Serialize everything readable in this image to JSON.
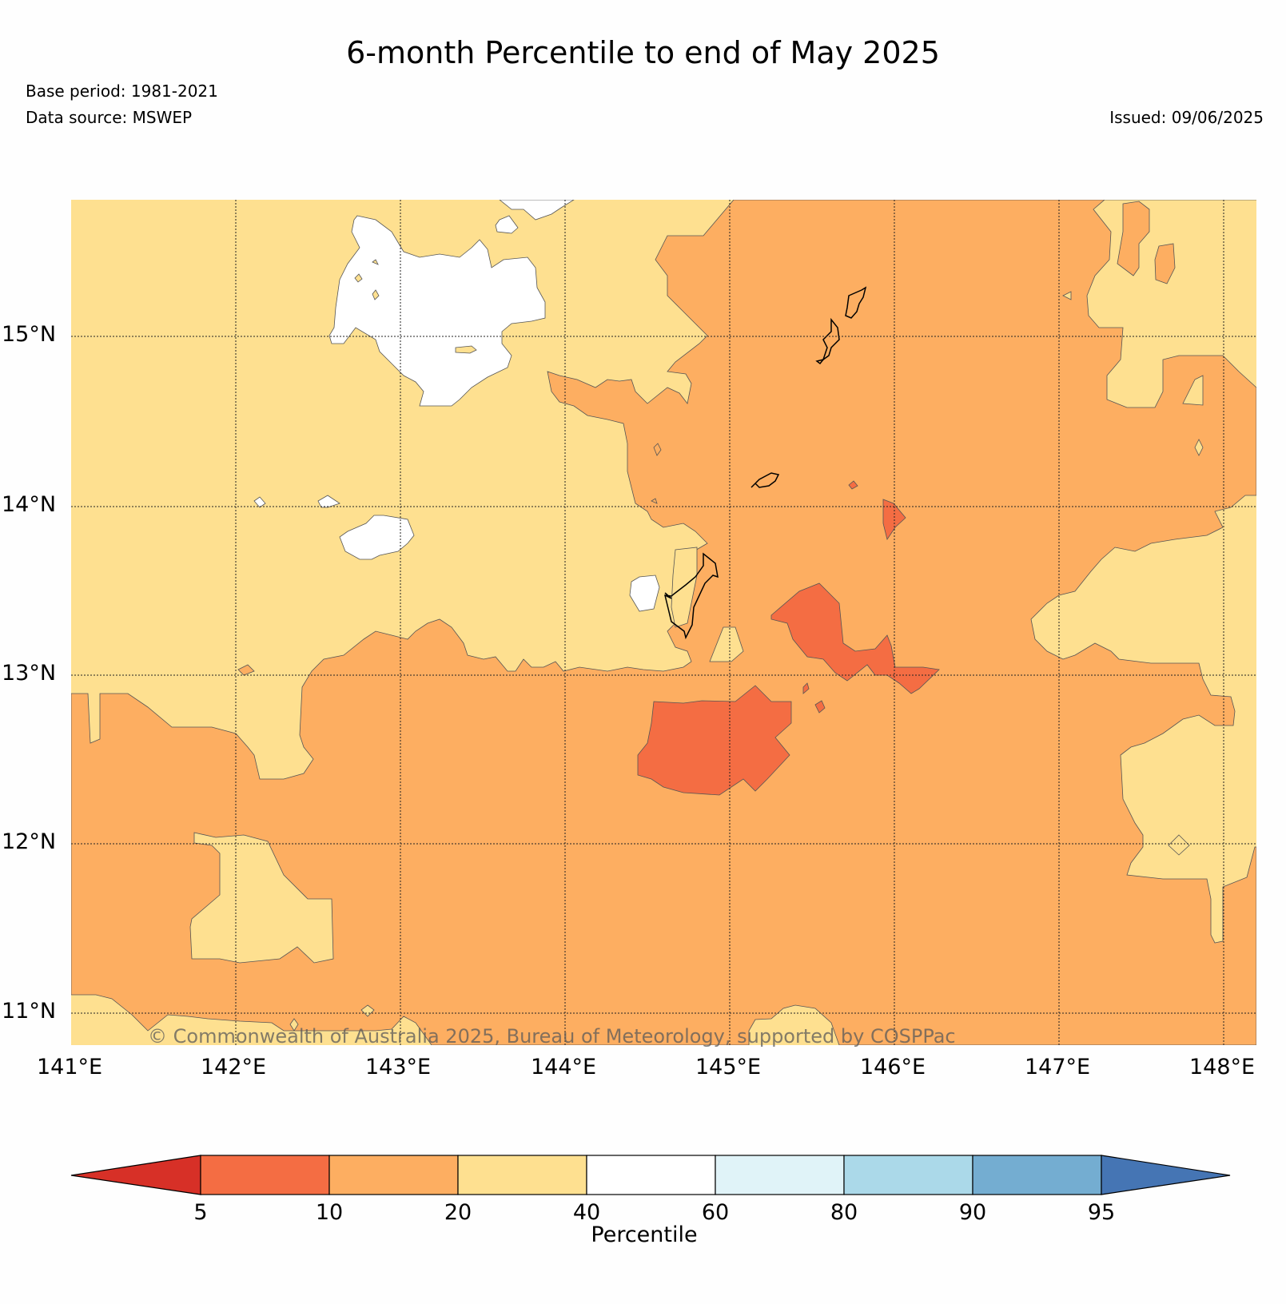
{
  "title": "6-month Percentile to end of May 2025",
  "base_period": "Base period: 1981-2021",
  "data_source": "Data source: MSWEP",
  "issued": "Issued: 09/06/2025",
  "copyright": "© Commonwealth of Australia 2025, Bureau of Meteorology, supported by COSPPac",
  "map": {
    "lon_labels": [
      "141°E",
      "142°E",
      "143°E",
      "144°E",
      "145°E",
      "146°E",
      "147°E",
      "148°E"
    ],
    "lat_labels": [
      "15°N",
      "14°N",
      "13°N",
      "12°N",
      "11°N"
    ]
  },
  "colorbar": {
    "title": "Percentile",
    "ticks": [
      "5",
      "10",
      "20",
      "40",
      "60",
      "80",
      "90",
      "95"
    ],
    "colors": [
      "#d73027",
      "#f46d43",
      "#fdae61",
      "#fee090",
      "#ffffff",
      "#e0f3f8",
      "#abd9e9",
      "#74add1",
      "#4575b4"
    ]
  }
}
